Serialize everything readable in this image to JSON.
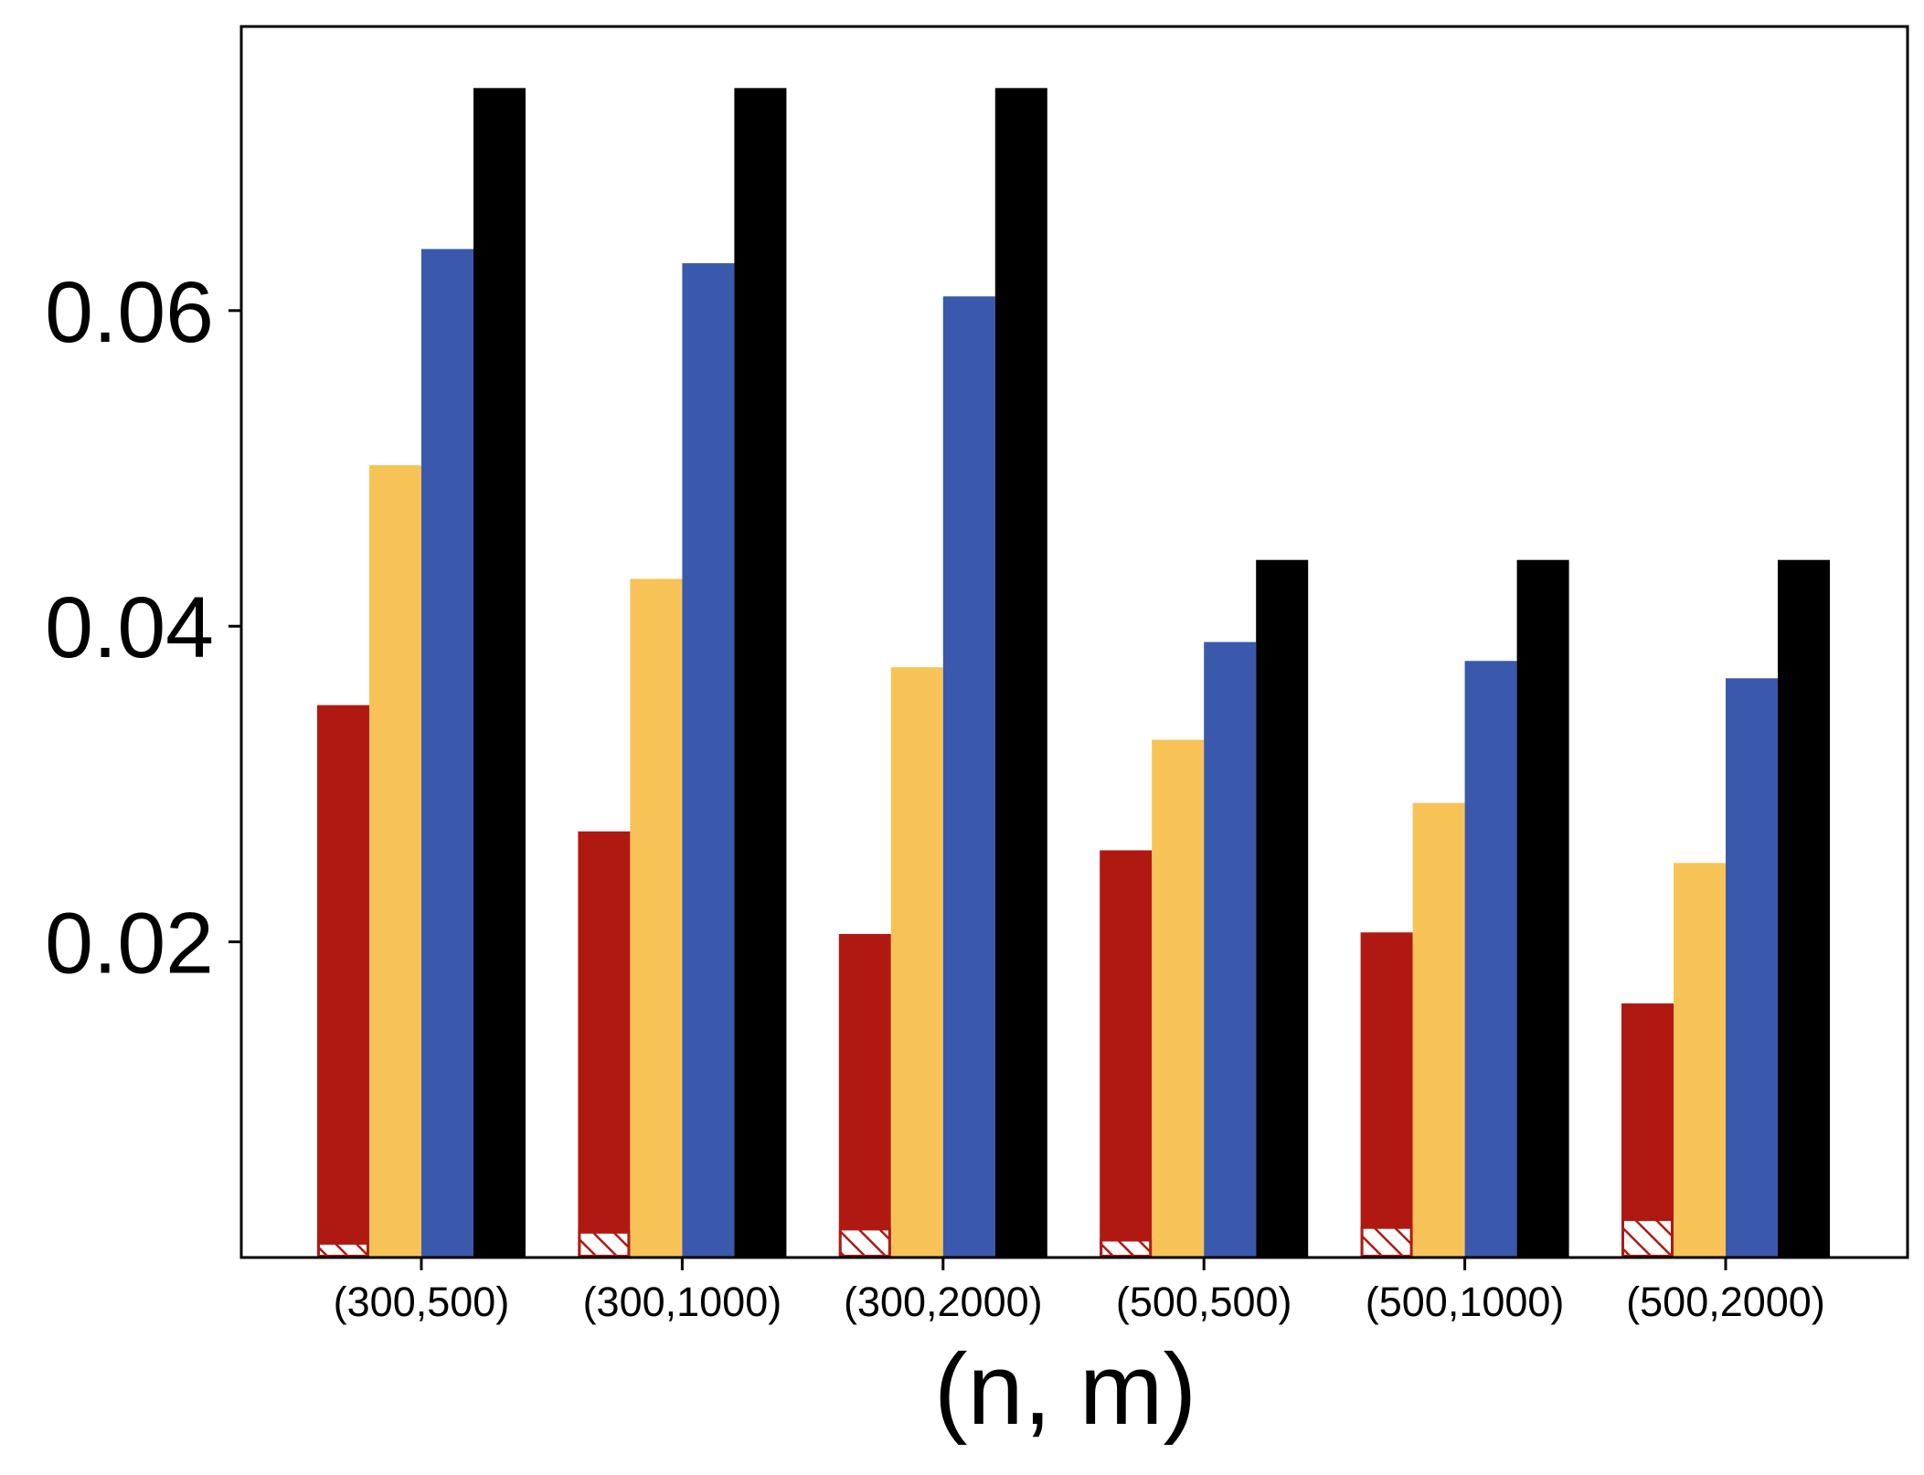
{
  "chart_data": {
    "type": "bar",
    "title": "",
    "xlabel": "(n, m)",
    "ylabel": "",
    "categories": [
      "(300,500)",
      "(300,1000)",
      "(300,2000)",
      "(500,500)",
      "(500,1000)",
      "(500,2000)"
    ],
    "ylim": [
      0,
      0.078
    ],
    "yticks": [
      0.02,
      0.04,
      0.06
    ],
    "ytick_labels": [
      "0.02",
      "0.04",
      "0.06"
    ],
    "grid": false,
    "legend": "none",
    "series": [
      {
        "values": [
          0.035,
          0.027,
          0.0205,
          0.0258,
          0.0206,
          0.0161
        ],
        "color": "#b01912",
        "hatch_values": [
          0.0009,
          0.0016,
          0.0018,
          0.0011,
          0.0019,
          0.0024
        ],
        "hatch_color": "#b01912"
      },
      {
        "values": [
          0.0502,
          0.043,
          0.0374,
          0.0328,
          0.0288,
          0.025
        ],
        "color": "#f7c357"
      },
      {
        "values": [
          0.0639,
          0.063,
          0.0609,
          0.039,
          0.0378,
          0.0367
        ],
        "color": "#3a59ad"
      },
      {
        "values": [
          0.0741,
          0.0741,
          0.0741,
          0.0442,
          0.0442,
          0.0442
        ],
        "color": "#000000"
      }
    ]
  }
}
